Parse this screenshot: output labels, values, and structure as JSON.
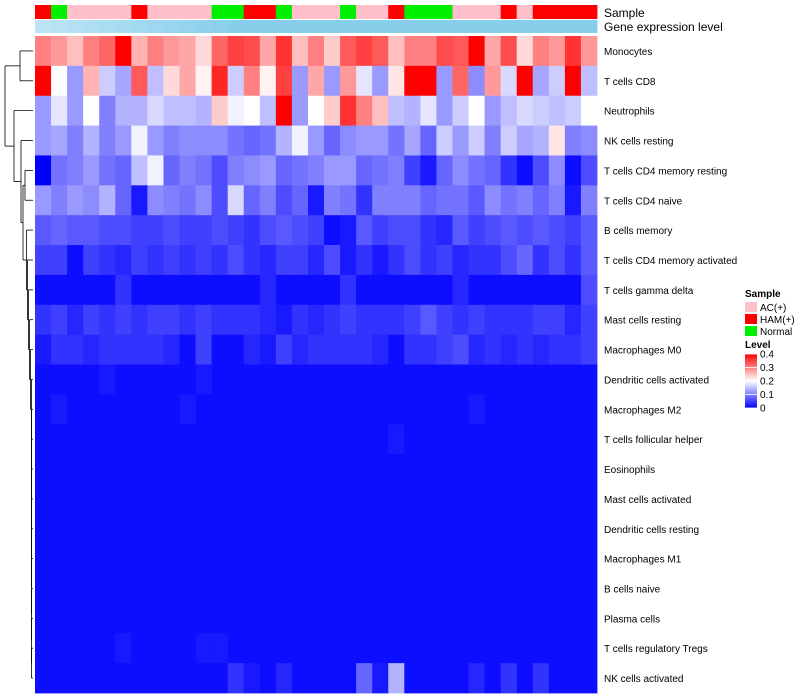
{
  "chart_data": {
    "type": "heatmap",
    "title": "",
    "annotation_labels": {
      "sample": "Sample",
      "gene": "Gene expression level"
    },
    "columns_sample": [
      "HAM(+)",
      "Normal",
      "AC(+)",
      "AC(+)",
      "AC(+)",
      "AC(+)",
      "HAM(+)",
      "AC(+)",
      "AC(+)",
      "AC(+)",
      "AC(+)",
      "Normal",
      "Normal",
      "HAM(+)",
      "HAM(+)",
      "Normal",
      "AC(+)",
      "AC(+)",
      "AC(+)",
      "Normal",
      "AC(+)",
      "AC(+)",
      "HAM(+)",
      "Normal",
      "Normal",
      "Normal",
      "AC(+)",
      "AC(+)",
      "AC(+)",
      "HAM(+)",
      "AC(+)",
      "HAM(+)",
      "HAM(+)",
      "HAM(+)",
      "HAM(+)"
    ],
    "rows": [
      "Monocytes",
      "T cells CD8",
      "Neutrophils",
      "NK cells resting",
      "T cells CD4 memory resting",
      "T cells CD4 naive",
      "B cells memory",
      "T cells CD4 memory activated",
      "T cells gamma delta",
      "Mast cells resting",
      "Macrophages M0",
      "Dendritic cells activated",
      "Macrophages M2",
      "T cells follicular helper",
      "Eosinophils",
      "Mast cells activated",
      "Dendritic cells resting",
      "Macrophages M1",
      "B cells naive",
      "Plasma cells",
      "T cells regulatory  Tregs",
      "NK cells activated"
    ],
    "values": [
      [
        0.3,
        0.28,
        0.25,
        0.3,
        0.32,
        0.4,
        0.26,
        0.3,
        0.28,
        0.27,
        0.23,
        0.32,
        0.35,
        0.34,
        0.27,
        0.36,
        0.25,
        0.3,
        0.24,
        0.33,
        0.35,
        0.33,
        0.25,
        0.3,
        0.3,
        0.34,
        0.33,
        0.4,
        0.27,
        0.34,
        0.23,
        0.3,
        0.28,
        0.36,
        0.28
      ],
      [
        0.4,
        0.2,
        0.12,
        0.26,
        0.16,
        0.13,
        0.33,
        0.15,
        0.23,
        0.27,
        0.21,
        0.37,
        0.16,
        0.3,
        0.21,
        0.35,
        0.12,
        0.27,
        0.12,
        0.28,
        0.18,
        0.12,
        0.22,
        0.4,
        0.4,
        0.12,
        0.32,
        0.11,
        0.28,
        0.17,
        0.4,
        0.13,
        0.16,
        0.4,
        0.15
      ],
      [
        0.12,
        0.18,
        0.12,
        0.2,
        0.1,
        0.14,
        0.14,
        0.17,
        0.15,
        0.15,
        0.14,
        0.24,
        0.19,
        0.2,
        0.15,
        0.4,
        0.12,
        0.2,
        0.24,
        0.36,
        0.3,
        0.25,
        0.15,
        0.14,
        0.18,
        0.12,
        0.16,
        0.2,
        0.12,
        0.15,
        0.17,
        0.16,
        0.15,
        0.16,
        0.2
      ],
      [
        0.12,
        0.13,
        0.1,
        0.14,
        0.1,
        0.12,
        0.19,
        0.12,
        0.1,
        0.11,
        0.11,
        0.11,
        0.09,
        0.08,
        0.09,
        0.14,
        0.19,
        0.12,
        0.08,
        0.11,
        0.12,
        0.12,
        0.09,
        0.13,
        0.08,
        0.16,
        0.12,
        0.16,
        0.1,
        0.16,
        0.13,
        0.14,
        0.22,
        0.1,
        0.11
      ],
      [
        0.0,
        0.09,
        0.1,
        0.12,
        0.09,
        0.08,
        0.15,
        0.19,
        0.08,
        0.1,
        0.09,
        0.06,
        0.1,
        0.11,
        0.12,
        0.08,
        0.09,
        0.1,
        0.12,
        0.12,
        0.08,
        0.09,
        0.1,
        0.05,
        0.02,
        0.08,
        0.11,
        0.09,
        0.08,
        0.04,
        0.01,
        0.06,
        0.11,
        0.01,
        0.06
      ],
      [
        0.12,
        0.1,
        0.12,
        0.11,
        0.14,
        0.08,
        0.02,
        0.11,
        0.1,
        0.09,
        0.11,
        0.06,
        0.17,
        0.08,
        0.1,
        0.06,
        0.08,
        0.02,
        0.1,
        0.09,
        0.04,
        0.1,
        0.1,
        0.1,
        0.08,
        0.09,
        0.09,
        0.07,
        0.11,
        0.09,
        0.1,
        0.08,
        0.1,
        0.02,
        0.1
      ],
      [
        0.07,
        0.08,
        0.07,
        0.07,
        0.06,
        0.06,
        0.05,
        0.05,
        0.06,
        0.05,
        0.05,
        0.06,
        0.05,
        0.04,
        0.06,
        0.07,
        0.06,
        0.05,
        0.01,
        0.02,
        0.07,
        0.05,
        0.06,
        0.06,
        0.04,
        0.03,
        0.07,
        0.05,
        0.06,
        0.07,
        0.06,
        0.07,
        0.06,
        0.05,
        0.07
      ],
      [
        0.05,
        0.05,
        0.01,
        0.05,
        0.04,
        0.03,
        0.05,
        0.04,
        0.05,
        0.04,
        0.05,
        0.04,
        0.06,
        0.04,
        0.03,
        0.05,
        0.05,
        0.03,
        0.06,
        0.02,
        0.04,
        0.02,
        0.04,
        0.06,
        0.04,
        0.05,
        0.03,
        0.04,
        0.04,
        0.06,
        0.08,
        0.04,
        0.06,
        0.04,
        0.07
      ],
      [
        0.01,
        0.01,
        0.01,
        0.01,
        0.01,
        0.04,
        0.01,
        0.01,
        0.01,
        0.01,
        0.01,
        0.01,
        0.01,
        0.01,
        0.03,
        0.01,
        0.01,
        0.01,
        0.01,
        0.04,
        0.01,
        0.01,
        0.01,
        0.01,
        0.01,
        0.01,
        0.03,
        0.01,
        0.01,
        0.01,
        0.01,
        0.01,
        0.01,
        0.01,
        0.06
      ],
      [
        0.04,
        0.05,
        0.03,
        0.05,
        0.04,
        0.05,
        0.04,
        0.05,
        0.05,
        0.04,
        0.05,
        0.04,
        0.04,
        0.04,
        0.03,
        0.02,
        0.04,
        0.03,
        0.04,
        0.05,
        0.04,
        0.04,
        0.04,
        0.05,
        0.07,
        0.05,
        0.04,
        0.05,
        0.04,
        0.04,
        0.04,
        0.05,
        0.05,
        0.03,
        0.05
      ],
      [
        0.02,
        0.04,
        0.04,
        0.03,
        0.04,
        0.04,
        0.04,
        0.04,
        0.03,
        0.01,
        0.05,
        0.01,
        0.01,
        0.03,
        0.02,
        0.05,
        0.03,
        0.04,
        0.04,
        0.04,
        0.04,
        0.03,
        0.01,
        0.04,
        0.04,
        0.05,
        0.06,
        0.03,
        0.04,
        0.03,
        0.04,
        0.03,
        0.04,
        0.04,
        0.05
      ],
      [
        0.01,
        0.01,
        0.01,
        0.01,
        0.02,
        0.01,
        0.01,
        0.01,
        0.01,
        0.01,
        0.02,
        0.01,
        0.01,
        0.01,
        0.01,
        0.01,
        0.01,
        0.01,
        0.01,
        0.01,
        0.01,
        0.01,
        0.01,
        0.01,
        0.01,
        0.01,
        0.01,
        0.01,
        0.01,
        0.01,
        0.01,
        0.01,
        0.01,
        0.01,
        0.01
      ],
      [
        0.01,
        0.02,
        0.01,
        0.01,
        0.01,
        0.01,
        0.01,
        0.01,
        0.01,
        0.02,
        0.01,
        0.01,
        0.01,
        0.01,
        0.01,
        0.01,
        0.01,
        0.01,
        0.01,
        0.01,
        0.01,
        0.01,
        0.01,
        0.01,
        0.01,
        0.01,
        0.01,
        0.02,
        0.01,
        0.01,
        0.01,
        0.01,
        0.01,
        0.01,
        0.01
      ],
      [
        0.01,
        0.01,
        0.01,
        0.01,
        0.01,
        0.01,
        0.01,
        0.01,
        0.01,
        0.01,
        0.01,
        0.01,
        0.01,
        0.01,
        0.01,
        0.01,
        0.01,
        0.01,
        0.01,
        0.01,
        0.01,
        0.01,
        0.02,
        0.01,
        0.01,
        0.01,
        0.01,
        0.01,
        0.01,
        0.01,
        0.01,
        0.01,
        0.01,
        0.01,
        0.01
      ],
      [
        0.01,
        0.01,
        0.01,
        0.01,
        0.01,
        0.01,
        0.01,
        0.01,
        0.01,
        0.01,
        0.01,
        0.01,
        0.01,
        0.01,
        0.01,
        0.01,
        0.01,
        0.01,
        0.01,
        0.01,
        0.01,
        0.01,
        0.01,
        0.01,
        0.01,
        0.01,
        0.01,
        0.01,
        0.01,
        0.01,
        0.01,
        0.01,
        0.01,
        0.01,
        0.01
      ],
      [
        0.01,
        0.01,
        0.01,
        0.01,
        0.01,
        0.01,
        0.01,
        0.01,
        0.01,
        0.01,
        0.01,
        0.01,
        0.01,
        0.01,
        0.01,
        0.01,
        0.01,
        0.01,
        0.01,
        0.01,
        0.01,
        0.01,
        0.01,
        0.01,
        0.01,
        0.01,
        0.01,
        0.01,
        0.01,
        0.01,
        0.01,
        0.01,
        0.01,
        0.01,
        0.01
      ],
      [
        0.01,
        0.01,
        0.01,
        0.01,
        0.01,
        0.01,
        0.01,
        0.01,
        0.01,
        0.01,
        0.01,
        0.01,
        0.01,
        0.01,
        0.01,
        0.01,
        0.01,
        0.01,
        0.01,
        0.01,
        0.01,
        0.01,
        0.01,
        0.01,
        0.01,
        0.01,
        0.01,
        0.01,
        0.01,
        0.01,
        0.01,
        0.01,
        0.01,
        0.01,
        0.01
      ],
      [
        0.01,
        0.01,
        0.01,
        0.01,
        0.01,
        0.01,
        0.01,
        0.01,
        0.01,
        0.01,
        0.01,
        0.01,
        0.01,
        0.01,
        0.01,
        0.01,
        0.01,
        0.01,
        0.01,
        0.01,
        0.01,
        0.01,
        0.01,
        0.01,
        0.01,
        0.01,
        0.01,
        0.01,
        0.01,
        0.01,
        0.01,
        0.01,
        0.01,
        0.01,
        0.01
      ],
      [
        0.01,
        0.01,
        0.01,
        0.01,
        0.01,
        0.01,
        0.01,
        0.01,
        0.01,
        0.01,
        0.01,
        0.01,
        0.01,
        0.01,
        0.01,
        0.01,
        0.01,
        0.01,
        0.01,
        0.01,
        0.01,
        0.01,
        0.01,
        0.01,
        0.01,
        0.01,
        0.01,
        0.01,
        0.01,
        0.01,
        0.01,
        0.01,
        0.01,
        0.01,
        0.01
      ],
      [
        0.01,
        0.01,
        0.01,
        0.01,
        0.01,
        0.01,
        0.01,
        0.01,
        0.01,
        0.01,
        0.01,
        0.01,
        0.01,
        0.01,
        0.01,
        0.01,
        0.01,
        0.01,
        0.01,
        0.01,
        0.01,
        0.01,
        0.01,
        0.01,
        0.01,
        0.01,
        0.01,
        0.01,
        0.01,
        0.01,
        0.01,
        0.01,
        0.01,
        0.01,
        0.01
      ],
      [
        0.01,
        0.01,
        0.01,
        0.01,
        0.01,
        0.02,
        0.01,
        0.01,
        0.01,
        0.01,
        0.02,
        0.02,
        0.01,
        0.01,
        0.01,
        0.01,
        0.01,
        0.01,
        0.01,
        0.01,
        0.01,
        0.01,
        0.01,
        0.01,
        0.01,
        0.01,
        0.01,
        0.01,
        0.01,
        0.01,
        0.01,
        0.01,
        0.01,
        0.01,
        0.01
      ],
      [
        0.01,
        0.01,
        0.01,
        0.01,
        0.01,
        0.01,
        0.01,
        0.01,
        0.01,
        0.01,
        0.01,
        0.01,
        0.04,
        0.02,
        0.01,
        0.03,
        0.01,
        0.01,
        0.01,
        0.01,
        0.08,
        0.02,
        0.14,
        0.01,
        0.01,
        0.01,
        0.01,
        0.03,
        0.01,
        0.04,
        0.01,
        0.04,
        0.01,
        0.01,
        0.01
      ]
    ],
    "color_scale": {
      "min": 0,
      "max": 0.4,
      "low": "#0000ff",
      "mid": "#ffffff",
      "high": "#ff0000",
      "mid_value": 0.2
    },
    "legend": {
      "sample_title": "Sample",
      "sample_items": [
        {
          "label": "AC(+)",
          "color": "#ffc0cb"
        },
        {
          "label": "HAM(+)",
          "color": "#ff0000"
        },
        {
          "label": "Normal",
          "color": "#00ee00"
        }
      ],
      "level_title": "Level",
      "level_ticks": [
        "0.4",
        "0.3",
        "0.2",
        "0.1",
        "0"
      ],
      "level_tick_values": [
        0.4,
        0.3,
        0.2,
        0.1,
        0
      ]
    },
    "gene_expression_color": "#87ceeb",
    "legend_placement": "right"
  }
}
